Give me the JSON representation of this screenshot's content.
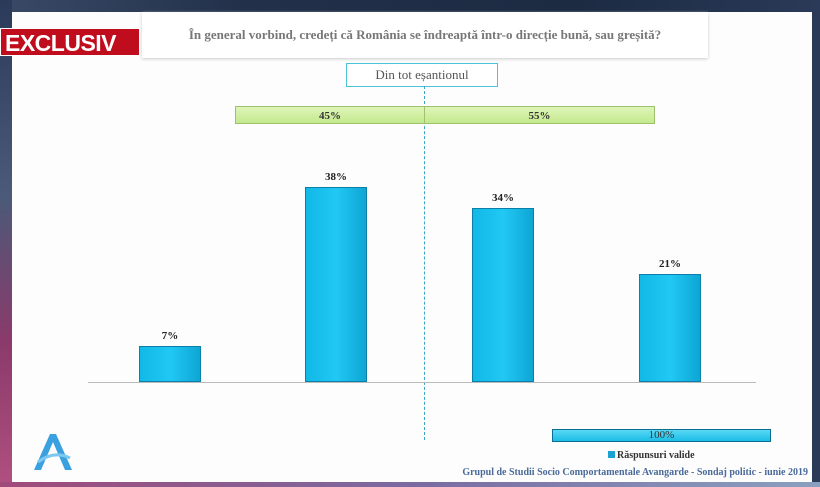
{
  "badge": "EXCLUSIV",
  "chart_data": {
    "type": "bar",
    "title": "În general vorbind, credeți că România se îndreaptă într-o direcție bună, sau greșită?",
    "subtitle": "Din tot eșantionul",
    "categories": [
      "",
      "",
      "",
      ""
    ],
    "values": [
      7,
      38,
      34,
      21
    ],
    "value_labels": [
      "7%",
      "38%",
      "34%",
      "21%"
    ],
    "ylim": [
      0,
      45
    ],
    "grid": false,
    "groups": [
      {
        "label": "45%",
        "value": 45
      },
      {
        "label": "55%",
        "value": 55
      }
    ],
    "total": {
      "label": "100%",
      "value": 100
    },
    "legend": [
      {
        "name": "Răspunsuri valide",
        "color": "#1aa3d0"
      }
    ],
    "legend_placement": "bottom-right"
  },
  "footer": "Grupul de Studii Socio Comportamentale Avangarde  -  Sondaj politic  -  iunie 2019",
  "colors": {
    "bar": "#1ec0ee",
    "group": "#c4e98e",
    "badge": "#c00d1e"
  }
}
